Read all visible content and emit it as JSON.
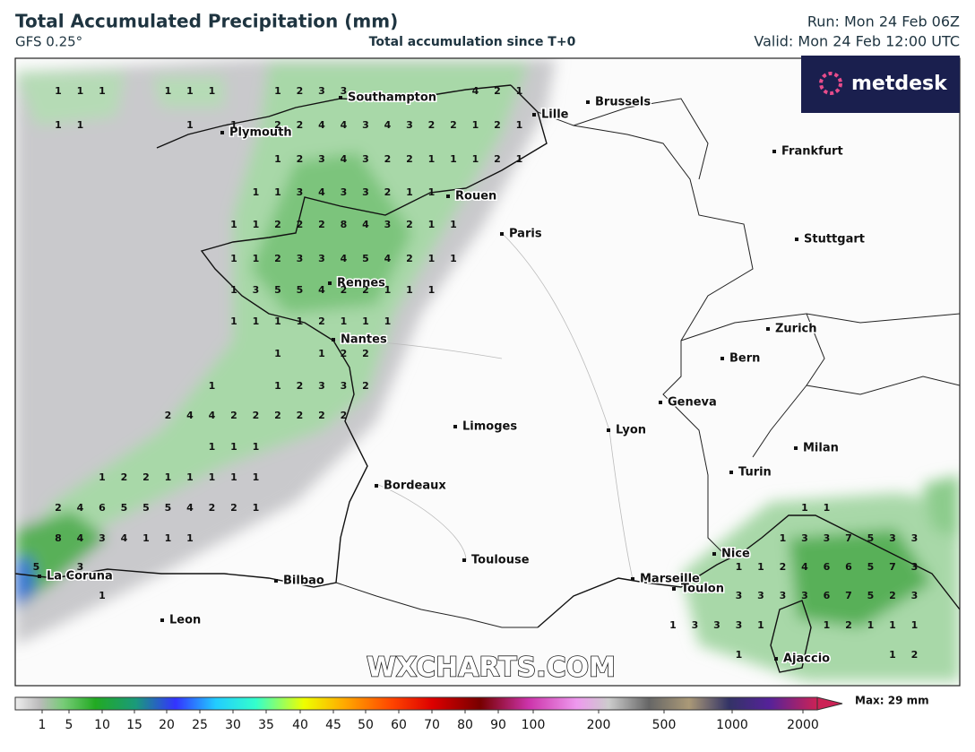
{
  "header": {
    "title": "Total Accumulated Precipitation (mm)",
    "model": "GFS 0.25°",
    "subtitle": "Total accumulation since T+0",
    "run": "Run: Mon 24 Feb 06Z",
    "valid": "Valid: Mon 24 Feb 12:00 UTC"
  },
  "logo": "metdesk",
  "watermark": "WXCHARTS.COM",
  "cities": [
    "Southampton",
    "Plymouth",
    "Lille",
    "Brussels",
    "Frankfurt",
    "Rouen",
    "Paris",
    "Stuttgart",
    "Rennes",
    "Nantes",
    "Zurich",
    "Bern",
    "Geneva",
    "Limoges",
    "Lyon",
    "Milan",
    "Bordeaux",
    "Turin",
    "Nice",
    "Toulouse",
    "Marseille",
    "Toulon",
    "La Coruna",
    "Bilbao",
    "Leon",
    "Ajaccio"
  ],
  "grid_values": [
    [
      null,
      null,
      1,
      1,
      1,
      null,
      null,
      1,
      1,
      1,
      null,
      null,
      1,
      2,
      3,
      3,
      null,
      null,
      null,
      null,
      null,
      4,
      2,
      1,
      null,
      null,
      null,
      null,
      null,
      null,
      null,
      null,
      null,
      null,
      null,
      null,
      null,
      null,
      null,
      null,
      null,
      null
    ],
    [
      null,
      null,
      1,
      1,
      null,
      null,
      null,
      null,
      1,
      null,
      1,
      null,
      2,
      2,
      4,
      4,
      3,
      4,
      3,
      2,
      2,
      1,
      2,
      1,
      null,
      null,
      null,
      null,
      null,
      null,
      null,
      null,
      null,
      null,
      null,
      null,
      null,
      null,
      null,
      null,
      null,
      null
    ],
    [
      null,
      null,
      null,
      null,
      null,
      null,
      null,
      null,
      null,
      null,
      null,
      null,
      1,
      2,
      3,
      4,
      3,
      2,
      2,
      1,
      1,
      1,
      2,
      1,
      null,
      null,
      null,
      null,
      null,
      null,
      null,
      null,
      null,
      null,
      null,
      null,
      null,
      null,
      null,
      null,
      null,
      null
    ],
    [
      null,
      null,
      null,
      null,
      null,
      null,
      null,
      null,
      null,
      null,
      null,
      1,
      1,
      3,
      4,
      3,
      3,
      2,
      1,
      1,
      null,
      null,
      null,
      null,
      null,
      null,
      null,
      null,
      null,
      null,
      null,
      null,
      null,
      null,
      null,
      null,
      null,
      null,
      null,
      null,
      null,
      null
    ],
    [
      null,
      null,
      null,
      null,
      null,
      null,
      null,
      null,
      null,
      null,
      1,
      1,
      2,
      2,
      2,
      8,
      4,
      3,
      2,
      1,
      1,
      null,
      null,
      null,
      null,
      null,
      null,
      null,
      null,
      null,
      null,
      null,
      null,
      null,
      null,
      null,
      null,
      null,
      null,
      null,
      null,
      null
    ],
    [
      null,
      null,
      null,
      null,
      null,
      null,
      null,
      null,
      null,
      null,
      1,
      1,
      2,
      3,
      3,
      4,
      5,
      4,
      2,
      1,
      1,
      null,
      null,
      null,
      null,
      null,
      null,
      null,
      null,
      null,
      null,
      null,
      null,
      null,
      null,
      null,
      null,
      null,
      null,
      null,
      null,
      null
    ],
    [
      null,
      null,
      null,
      null,
      null,
      null,
      null,
      null,
      null,
      null,
      1,
      3,
      5,
      5,
      4,
      2,
      2,
      1,
      1,
      1,
      null,
      null,
      null,
      null,
      null,
      null,
      null,
      null,
      null,
      null,
      null,
      null,
      null,
      null,
      null,
      null,
      null,
      null,
      null,
      null,
      null,
      null
    ],
    [
      null,
      null,
      null,
      null,
      null,
      null,
      null,
      null,
      null,
      null,
      1,
      1,
      1,
      1,
      2,
      1,
      1,
      1,
      null,
      null,
      null,
      null,
      null,
      null,
      null,
      null,
      null,
      null,
      null,
      null,
      null,
      null,
      null,
      null,
      null,
      null,
      null,
      null,
      null,
      null,
      null,
      null
    ],
    [
      null,
      null,
      null,
      null,
      null,
      null,
      null,
      null,
      null,
      null,
      null,
      null,
      1,
      null,
      1,
      2,
      2,
      null,
      null,
      null,
      null,
      null,
      null,
      null,
      null,
      null,
      null,
      null,
      null,
      null,
      null,
      null,
      null,
      null,
      null,
      null,
      null,
      null,
      null,
      null,
      null,
      null
    ],
    [
      null,
      null,
      null,
      null,
      null,
      null,
      null,
      null,
      null,
      1,
      null,
      null,
      1,
      2,
      3,
      3,
      2,
      null,
      null,
      null,
      null,
      null,
      null,
      null,
      null,
      null,
      null,
      null,
      null,
      null,
      null,
      null,
      null,
      null,
      null,
      null,
      null,
      null,
      null,
      null,
      null,
      null
    ],
    [
      null,
      null,
      null,
      null,
      null,
      null,
      null,
      2,
      4,
      4,
      2,
      2,
      2,
      2,
      2,
      2,
      null,
      null,
      null,
      null,
      null,
      null,
      null,
      null,
      null,
      null,
      null,
      null,
      null,
      null,
      null,
      null,
      null,
      null,
      null,
      null,
      null,
      null,
      null,
      null,
      null,
      null
    ],
    [
      null,
      null,
      null,
      null,
      null,
      null,
      null,
      null,
      null,
      1,
      1,
      1,
      null,
      null,
      null,
      null,
      null,
      null,
      null,
      null,
      null,
      null,
      null,
      null,
      null,
      null,
      null,
      null,
      null,
      null,
      null,
      null,
      null,
      null,
      null,
      null,
      null,
      null,
      null,
      null,
      null,
      null
    ],
    [
      null,
      null,
      null,
      null,
      1,
      2,
      2,
      1,
      1,
      1,
      1,
      1,
      null,
      null,
      null,
      null,
      null,
      null,
      null,
      null,
      null,
      null,
      null,
      null,
      null,
      null,
      null,
      null,
      null,
      null,
      null,
      null,
      null,
      null,
      null,
      null,
      null,
      null,
      null,
      null,
      null,
      null
    ],
    [
      null,
      null,
      2,
      4,
      6,
      5,
      5,
      5,
      4,
      2,
      2,
      1,
      null,
      null,
      null,
      null,
      null,
      null,
      null,
      null,
      null,
      null,
      null,
      null,
      null,
      null,
      null,
      null,
      null,
      null,
      null,
      null,
      null,
      null,
      null,
      null,
      1,
      1,
      null,
      null,
      null,
      null
    ],
    [
      null,
      null,
      8,
      4,
      3,
      4,
      1,
      1,
      1,
      null,
      null,
      null,
      null,
      null,
      null,
      null,
      null,
      null,
      null,
      null,
      null,
      null,
      null,
      null,
      null,
      null,
      null,
      null,
      null,
      null,
      null,
      null,
      null,
      null,
      null,
      1,
      3,
      3,
      7,
      5,
      3,
      3
    ],
    [
      null,
      5,
      null,
      3,
      null,
      null,
      null,
      null,
      null,
      null,
      null,
      null,
      null,
      null,
      null,
      null,
      null,
      null,
      null,
      null,
      null,
      null,
      null,
      null,
      null,
      null,
      null,
      null,
      null,
      null,
      null,
      null,
      null,
      1,
      1,
      2,
      4,
      6,
      6,
      5,
      7,
      3
    ],
    [
      null,
      null,
      null,
      null,
      1,
      null,
      null,
      null,
      null,
      null,
      null,
      null,
      null,
      null,
      null,
      null,
      null,
      null,
      null,
      null,
      null,
      null,
      null,
      null,
      null,
      null,
      null,
      null,
      null,
      null,
      null,
      null,
      null,
      3,
      3,
      3,
      3,
      6,
      7,
      5,
      2,
      3
    ],
    [
      null,
      null,
      null,
      null,
      null,
      null,
      null,
      null,
      null,
      null,
      null,
      null,
      null,
      null,
      null,
      null,
      null,
      null,
      null,
      null,
      null,
      null,
      null,
      null,
      null,
      null,
      null,
      null,
      null,
      null,
      1,
      3,
      3,
      3,
      1,
      null,
      null,
      1,
      2,
      1,
      1,
      1
    ],
    [
      null,
      null,
      null,
      null,
      null,
      null,
      null,
      null,
      null,
      null,
      null,
      null,
      null,
      null,
      null,
      null,
      null,
      null,
      null,
      null,
      null,
      null,
      null,
      null,
      null,
      null,
      null,
      null,
      null,
      null,
      null,
      null,
      null,
      1,
      null,
      null,
      null,
      null,
      null,
      null,
      1,
      2
    ]
  ],
  "colorbar": {
    "ticks": [
      1,
      5,
      10,
      15,
      20,
      25,
      30,
      35,
      40,
      45,
      50,
      60,
      70,
      80,
      90,
      100,
      200,
      500,
      1000,
      2000
    ],
    "max_label": "Max: 29 mm"
  }
}
